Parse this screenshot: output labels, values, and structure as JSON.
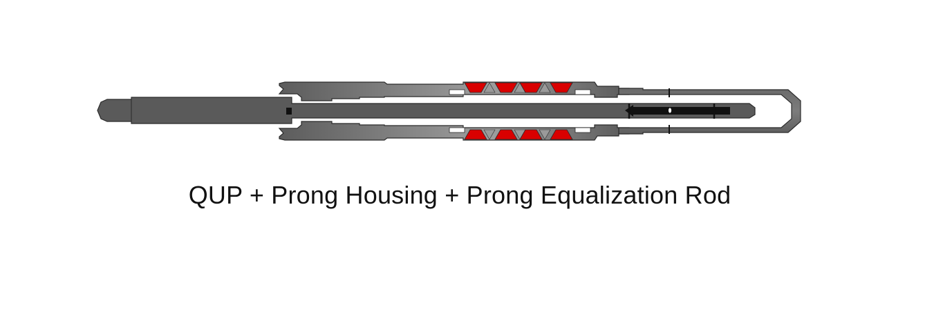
{
  "diagram": {
    "caption": "QUP + Prong Housing + Prong Equalization Rod",
    "colors": {
      "steel_dark": "#575757",
      "steel_mid": "#6e6e6e",
      "steel_light": "#9a9a9a",
      "outline": "#2b2b2b",
      "seal_red": "#d90000",
      "rod_black": "#111111",
      "background": "#ffffff"
    },
    "components": [
      {
        "name": "QUP"
      },
      {
        "name": "Prong Housing"
      },
      {
        "name": "Prong Equalization Rod"
      }
    ]
  }
}
